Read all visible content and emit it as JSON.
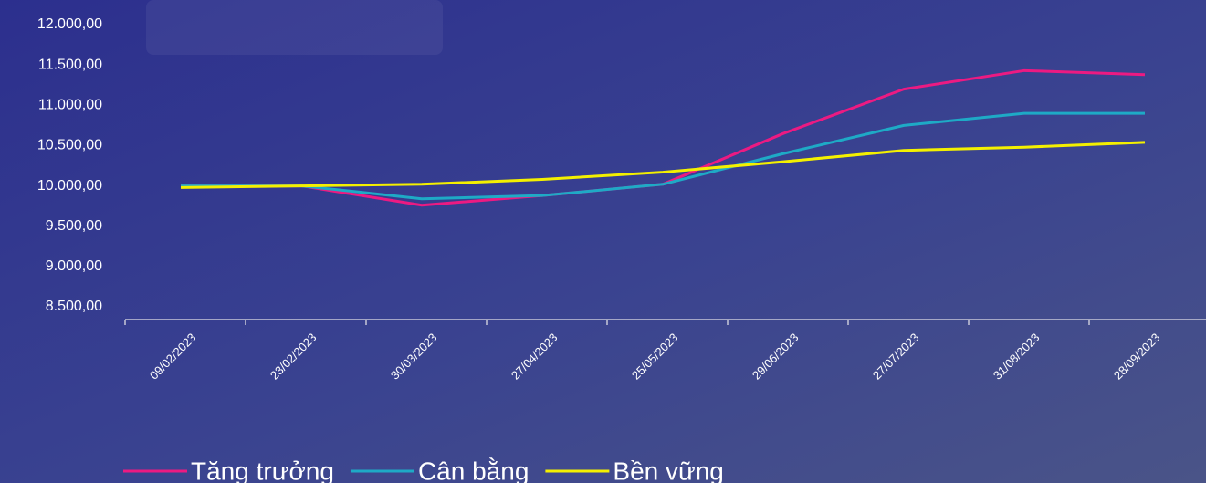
{
  "chart_data": {
    "type": "line",
    "categories": [
      "09/02/2023",
      "23/02/2023",
      "30/03/2023",
      "27/04/2023",
      "25/05/2023",
      "29/06/2023",
      "27/07/2023",
      "31/08/2023",
      "28/09/2023"
    ],
    "series": [
      {
        "name": "Tăng trưởng",
        "color": "#ec1a82",
        "values": [
          10000,
          10000,
          9760,
          9880,
          10020,
          10650,
          11200,
          11430,
          11380
        ]
      },
      {
        "name": "Cân bằng",
        "color": "#1eaac6",
        "values": [
          10000,
          10000,
          9840,
          9880,
          10020,
          10400,
          10750,
          10900,
          10900
        ]
      },
      {
        "name": "Bền vững",
        "color": "#f4f000",
        "values": [
          9980,
          10000,
          10020,
          10080,
          10170,
          10300,
          10440,
          10480,
          10540
        ]
      }
    ],
    "ylim": [
      8500,
      12000
    ],
    "yticks": [
      {
        "value": 8500,
        "label": "8.500,00"
      },
      {
        "value": 9000,
        "label": "9.000,00"
      },
      {
        "value": 9500,
        "label": "9.500,00"
      },
      {
        "value": 10000,
        "label": "10.000,00"
      },
      {
        "value": 10500,
        "label": "10.500,00"
      },
      {
        "value": 11000,
        "label": "11.000,00"
      },
      {
        "value": 11500,
        "label": "11.500,00"
      },
      {
        "value": 12000,
        "label": "12.000,00"
      }
    ],
    "legend": "bottom"
  }
}
